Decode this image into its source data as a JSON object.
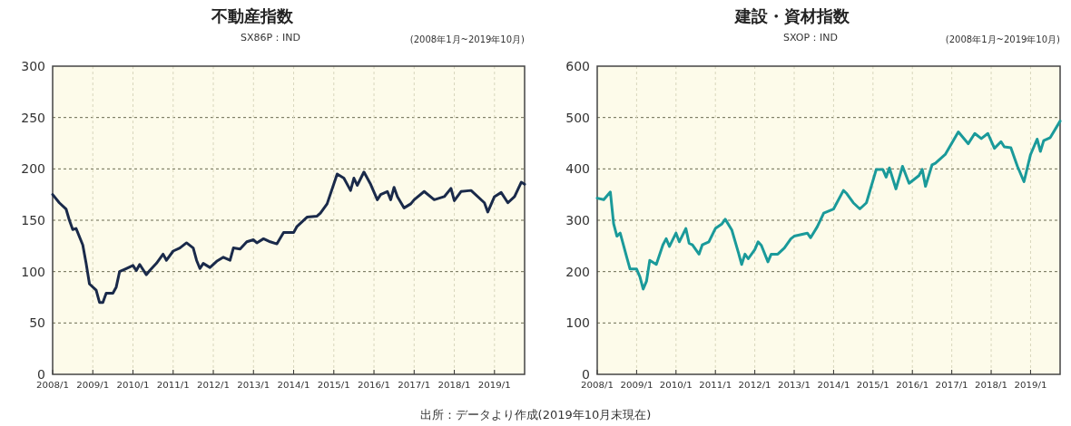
{
  "chart_data": [
    {
      "type": "line",
      "title": "不動産指数",
      "subtitle": "SX86P：IND",
      "annotations": [
        "(2008年1月~2019年10月)",
        "出所：データより作成(2019年10月末現在)"
      ],
      "xlim": [
        "2008-01",
        "2019-10"
      ],
      "ylim": [
        0,
        300
      ],
      "yticks": [
        0,
        50,
        100,
        150,
        200,
        250,
        300
      ],
      "xticks": [
        {
          "value": "2008-01",
          "label": "2008/1"
        },
        {
          "value": "2009-01",
          "label": "2009/1"
        },
        {
          "value": "2010-01",
          "label": "2010/1"
        },
        {
          "value": "2011-01",
          "label": "2011/1"
        },
        {
          "value": "2012-01",
          "label": "2012/1"
        },
        {
          "value": "2013-01",
          "label": "2013/1"
        },
        {
          "value": "2014-01",
          "label": "2014/1"
        },
        {
          "value": "2015-01",
          "label": "2015/1"
        },
        {
          "value": "2016-01",
          "label": "2016/1"
        },
        {
          "value": "2017-01",
          "label": "2017/1"
        },
        {
          "value": "2018-01",
          "label": "2018/1"
        },
        {
          "value": "2019-01",
          "label": "2019/1"
        }
      ],
      "grid": true,
      "marker": "none",
      "line_style": "solid",
      "series": [
        {
          "color": "#1a2a4a",
          "x": [
            "2008-01",
            "2008-03",
            "2008-05",
            "2008-06",
            "2008-07",
            "2008-08",
            "2008-10",
            "2008-11",
            "2008-12",
            "2009-02",
            "2009-03",
            "2009-04",
            "2009-05",
            "2009-07",
            "2009-08",
            "2009-09",
            "2009-11",
            "2010-01",
            "2010-02",
            "2010-03",
            "2010-05",
            "2010-06",
            "2010-08",
            "2010-10",
            "2010-11",
            "2011-01",
            "2011-03",
            "2011-05",
            "2011-07",
            "2011-08",
            "2011-09",
            "2011-10",
            "2011-12",
            "2012-02",
            "2012-04",
            "2012-06",
            "2012-07",
            "2012-09",
            "2012-11",
            "2013-01",
            "2013-02",
            "2013-04",
            "2013-06",
            "2013-08",
            "2013-10",
            "2014-01",
            "2014-02",
            "2014-05",
            "2014-08",
            "2014-09",
            "2014-11",
            "2015-02",
            "2015-04",
            "2015-06",
            "2015-07",
            "2015-08",
            "2015-10",
            "2015-12",
            "2016-02",
            "2016-03",
            "2016-05",
            "2016-06",
            "2016-07",
            "2016-08",
            "2016-10",
            "2016-12",
            "2017-01",
            "2017-04",
            "2017-07",
            "2017-10",
            "2017-12",
            "2018-01",
            "2018-03",
            "2018-06",
            "2018-10",
            "2018-11",
            "2019-01",
            "2019-03",
            "2019-05",
            "2019-07",
            "2019-09",
            "2019-10"
          ],
          "values": [
            175,
            167,
            161,
            150,
            141,
            142,
            126,
            108,
            88,
            82,
            70,
            70,
            79,
            79,
            85,
            100,
            103,
            106,
            101,
            107,
            97,
            101,
            108,
            117,
            111,
            120,
            123,
            128,
            123,
            111,
            103,
            108,
            104,
            110,
            114,
            111,
            123,
            122,
            129,
            131,
            128,
            132,
            129,
            127,
            138,
            138,
            144,
            153,
            154,
            157,
            166,
            195,
            191,
            179,
            191,
            184,
            197,
            185,
            170,
            175,
            178,
            170,
            182,
            173,
            162,
            166,
            170,
            178,
            170,
            173,
            181,
            169,
            178,
            179,
            167,
            158,
            173,
            177,
            167,
            173,
            187,
            185
          ]
        }
      ]
    },
    {
      "type": "line",
      "title": "建設・資材指数",
      "subtitle": "SXOP：IND",
      "annotations": [
        "(2008年1月~2019年10月)"
      ],
      "xlim": [
        "2008-01",
        "2019-10"
      ],
      "ylim": [
        0,
        600
      ],
      "yticks": [
        0,
        100,
        200,
        300,
        400,
        500,
        600
      ],
      "xticks": [
        {
          "value": "2008-01",
          "label": "2008/1"
        },
        {
          "value": "2009-01",
          "label": "2009/1"
        },
        {
          "value": "2010-01",
          "label": "2010/1"
        },
        {
          "value": "2011-01",
          "label": "2011/1"
        },
        {
          "value": "2012-01",
          "label": "2012/1"
        },
        {
          "value": "2013-01",
          "label": "2013/1"
        },
        {
          "value": "2014-01",
          "label": "2014/1"
        },
        {
          "value": "2015-01",
          "label": "2015/1"
        },
        {
          "value": "2016-01",
          "label": "2016/1"
        },
        {
          "value": "2017-01",
          "label": "2017/1"
        },
        {
          "value": "2018-01",
          "label": "2018/1"
        },
        {
          "value": "2019-01",
          "label": "2019/1"
        }
      ],
      "grid": true,
      "marker": "none",
      "line_style": "solid",
      "series": [
        {
          "color": "#1a9a9a",
          "x": [
            "2008-01",
            "2008-03",
            "2008-05",
            "2008-06",
            "2008-07",
            "2008-08",
            "2008-10",
            "2008-11",
            "2009-01",
            "2009-02",
            "2009-03",
            "2009-04",
            "2009-05",
            "2009-07",
            "2009-09",
            "2009-10",
            "2009-11",
            "2010-01",
            "2010-02",
            "2010-04",
            "2010-05",
            "2010-06",
            "2010-08",
            "2010-09",
            "2010-11",
            "2011-01",
            "2011-03",
            "2011-04",
            "2011-06",
            "2011-08",
            "2011-09",
            "2011-10",
            "2011-11",
            "2012-01",
            "2012-02",
            "2012-03",
            "2012-05",
            "2012-06",
            "2012-08",
            "2012-10",
            "2012-12",
            "2013-01",
            "2013-05",
            "2013-06",
            "2013-08",
            "2013-10",
            "2014-01",
            "2014-04",
            "2014-05",
            "2014-07",
            "2014-09",
            "2014-11",
            "2015-02",
            "2015-04",
            "2015-05",
            "2015-06",
            "2015-08",
            "2015-10",
            "2015-12",
            "2016-03",
            "2016-04",
            "2016-05",
            "2016-07",
            "2016-08",
            "2016-11",
            "2017-03",
            "2017-06",
            "2017-08",
            "2017-10",
            "2017-12",
            "2018-02",
            "2018-04",
            "2018-05",
            "2018-07",
            "2018-09",
            "2018-11",
            "2019-01",
            "2019-03",
            "2019-04",
            "2019-05",
            "2019-07",
            "2019-10"
          ],
          "values": [
            343,
            340,
            355,
            293,
            269,
            275,
            228,
            205,
            205,
            190,
            166,
            181,
            222,
            214,
            252,
            264,
            249,
            275,
            258,
            284,
            255,
            252,
            234,
            252,
            258,
            284,
            293,
            302,
            281,
            237,
            214,
            234,
            225,
            243,
            258,
            251,
            219,
            234,
            234,
            246,
            264,
            269,
            275,
            266,
            287,
            314,
            322,
            358,
            352,
            334,
            322,
            334,
            399,
            399,
            384,
            402,
            361,
            405,
            372,
            387,
            399,
            366,
            408,
            411,
            428,
            472,
            449,
            469,
            459,
            469,
            440,
            453,
            443,
            441,
            405,
            375,
            428,
            458,
            434,
            455,
            461,
            493
          ]
        }
      ]
    }
  ]
}
